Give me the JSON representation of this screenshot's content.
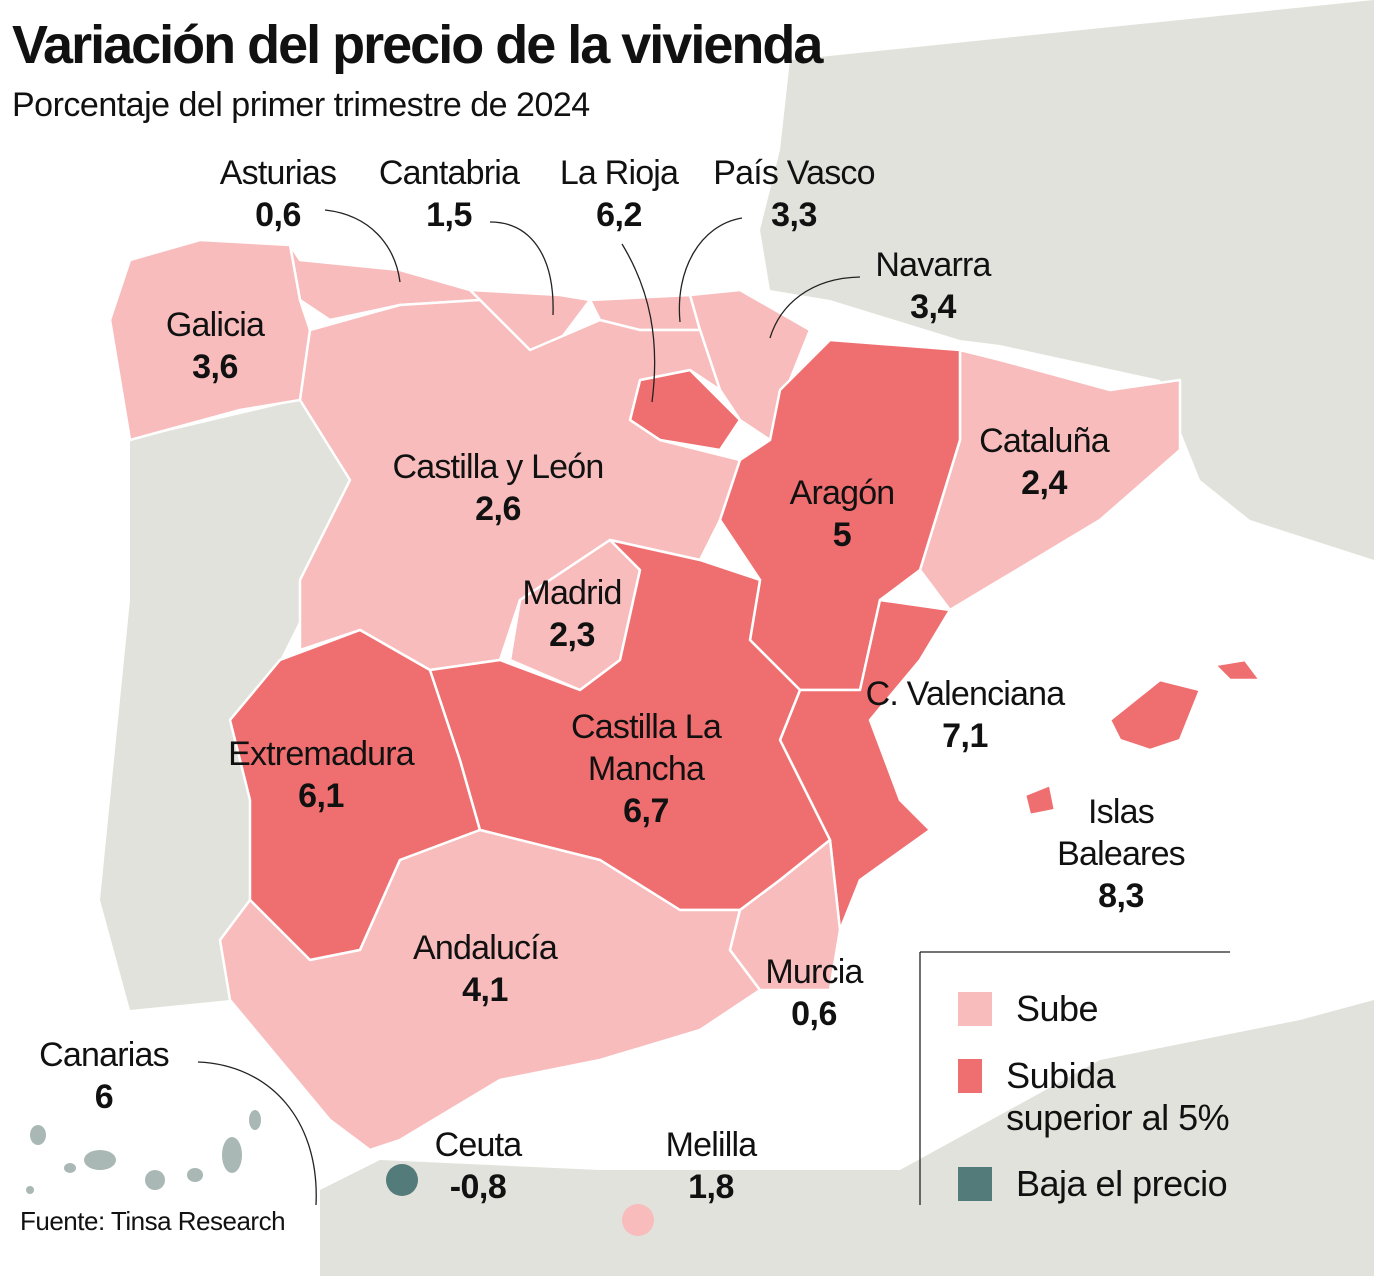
{
  "title": "Variación del precio de la vivienda",
  "subtitle": "Porcentaje del primer trimestre de 2024",
  "source": "Fuente: Tinsa Research",
  "colors": {
    "sube": "#f8bcbc",
    "subida_superior": "#ef6f70",
    "baja": "#527b7a",
    "land": "#e2e2dc",
    "sea": "#ffffff",
    "islands_canarias": "#a9b8b5"
  },
  "legend": [
    {
      "key": "sube",
      "label": "Sube"
    },
    {
      "key": "subida_superior",
      "label": "Subida superior al 5%"
    },
    {
      "key": "baja",
      "label": "Baja el precio"
    }
  ],
  "regions": [
    {
      "name": "Asturias",
      "value": "0,6",
      "category": "sube"
    },
    {
      "name": "Cantabria",
      "value": "1,5",
      "category": "sube"
    },
    {
      "name": "La Rioja",
      "value": "6,2",
      "category": "subida_superior"
    },
    {
      "name": "País Vasco",
      "value": "3,3",
      "category": "sube"
    },
    {
      "name": "Navarra",
      "value": "3,4",
      "category": "sube"
    },
    {
      "name": "Galicia",
      "value": "3,6",
      "category": "sube"
    },
    {
      "name": "Castilla y León",
      "value": "2,6",
      "category": "sube"
    },
    {
      "name": "Cataluña",
      "value": "2,4",
      "category": "sube"
    },
    {
      "name": "Aragón",
      "value": "5",
      "category": "subida_superior"
    },
    {
      "name": "Madrid",
      "value": "2,3",
      "category": "sube"
    },
    {
      "name": "C. Valenciana",
      "value": "7,1",
      "category": "subida_superior"
    },
    {
      "name": "Extremadura",
      "value": "6,1",
      "category": "subida_superior"
    },
    {
      "name": "Castilla La Mancha",
      "value": "6,7",
      "category": "subida_superior"
    },
    {
      "name": "Islas Baleares",
      "value": "8,3",
      "category": "subida_superior"
    },
    {
      "name": "Andalucía",
      "value": "4,1",
      "category": "sube"
    },
    {
      "name": "Murcia",
      "value": "0,6",
      "category": "sube"
    },
    {
      "name": "Canarias",
      "value": "6",
      "category": "subida_superior"
    },
    {
      "name": "Ceuta",
      "value": "-0,8",
      "category": "baja"
    },
    {
      "name": "Melilla",
      "value": "1,8",
      "category": "sube"
    }
  ]
}
